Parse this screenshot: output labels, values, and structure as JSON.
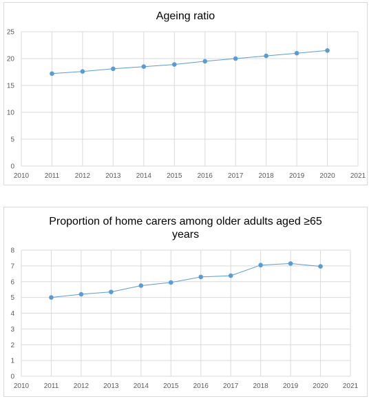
{
  "chart_data": [
    {
      "type": "scatter",
      "title": "Ageing ratio",
      "xlabel": "",
      "ylabel": "",
      "xlim": [
        2010,
        2021
      ],
      "ylim": [
        0,
        25
      ],
      "x_ticks": [
        "2010",
        "2011",
        "2012",
        "2013",
        "2014",
        "2015",
        "2016",
        "2017",
        "2018",
        "2019",
        "2020",
        "2021"
      ],
      "y_ticks": [
        "0",
        "5",
        "10",
        "15",
        "20",
        "25"
      ],
      "grid": true,
      "legend": "none",
      "line_color": "#5B9BD5",
      "series": [
        {
          "x": [
            2011,
            2012,
            2013,
            2014,
            2015,
            2016,
            2017,
            2018,
            2019,
            2020
          ],
          "values": [
            17.2,
            17.6,
            18.1,
            18.5,
            18.9,
            19.5,
            20.0,
            20.5,
            21.0,
            21.5
          ]
        }
      ]
    },
    {
      "type": "scatter",
      "title": "Proportion of home carers among older adults aged ≥65 years",
      "xlabel": "",
      "ylabel": "",
      "xlim": [
        2010,
        2021
      ],
      "ylim": [
        0,
        8
      ],
      "x_ticks": [
        "2010",
        "2011",
        "2012",
        "2013",
        "2014",
        "2015",
        "2016",
        "2017",
        "2018",
        "2019",
        "2020",
        "2021"
      ],
      "y_ticks": [
        "0",
        "1",
        "2",
        "3",
        "4",
        "5",
        "6",
        "7",
        "8"
      ],
      "grid": true,
      "legend": "none",
      "line_color": "#5B9BD5",
      "series": [
        {
          "x": [
            2011,
            2012,
            2013,
            2014,
            2015,
            2016,
            2017,
            2018,
            2019,
            2020
          ],
          "values": [
            5.0,
            5.2,
            5.35,
            5.75,
            5.95,
            6.3,
            6.38,
            7.05,
            7.15,
            6.97
          ]
        }
      ]
    }
  ]
}
